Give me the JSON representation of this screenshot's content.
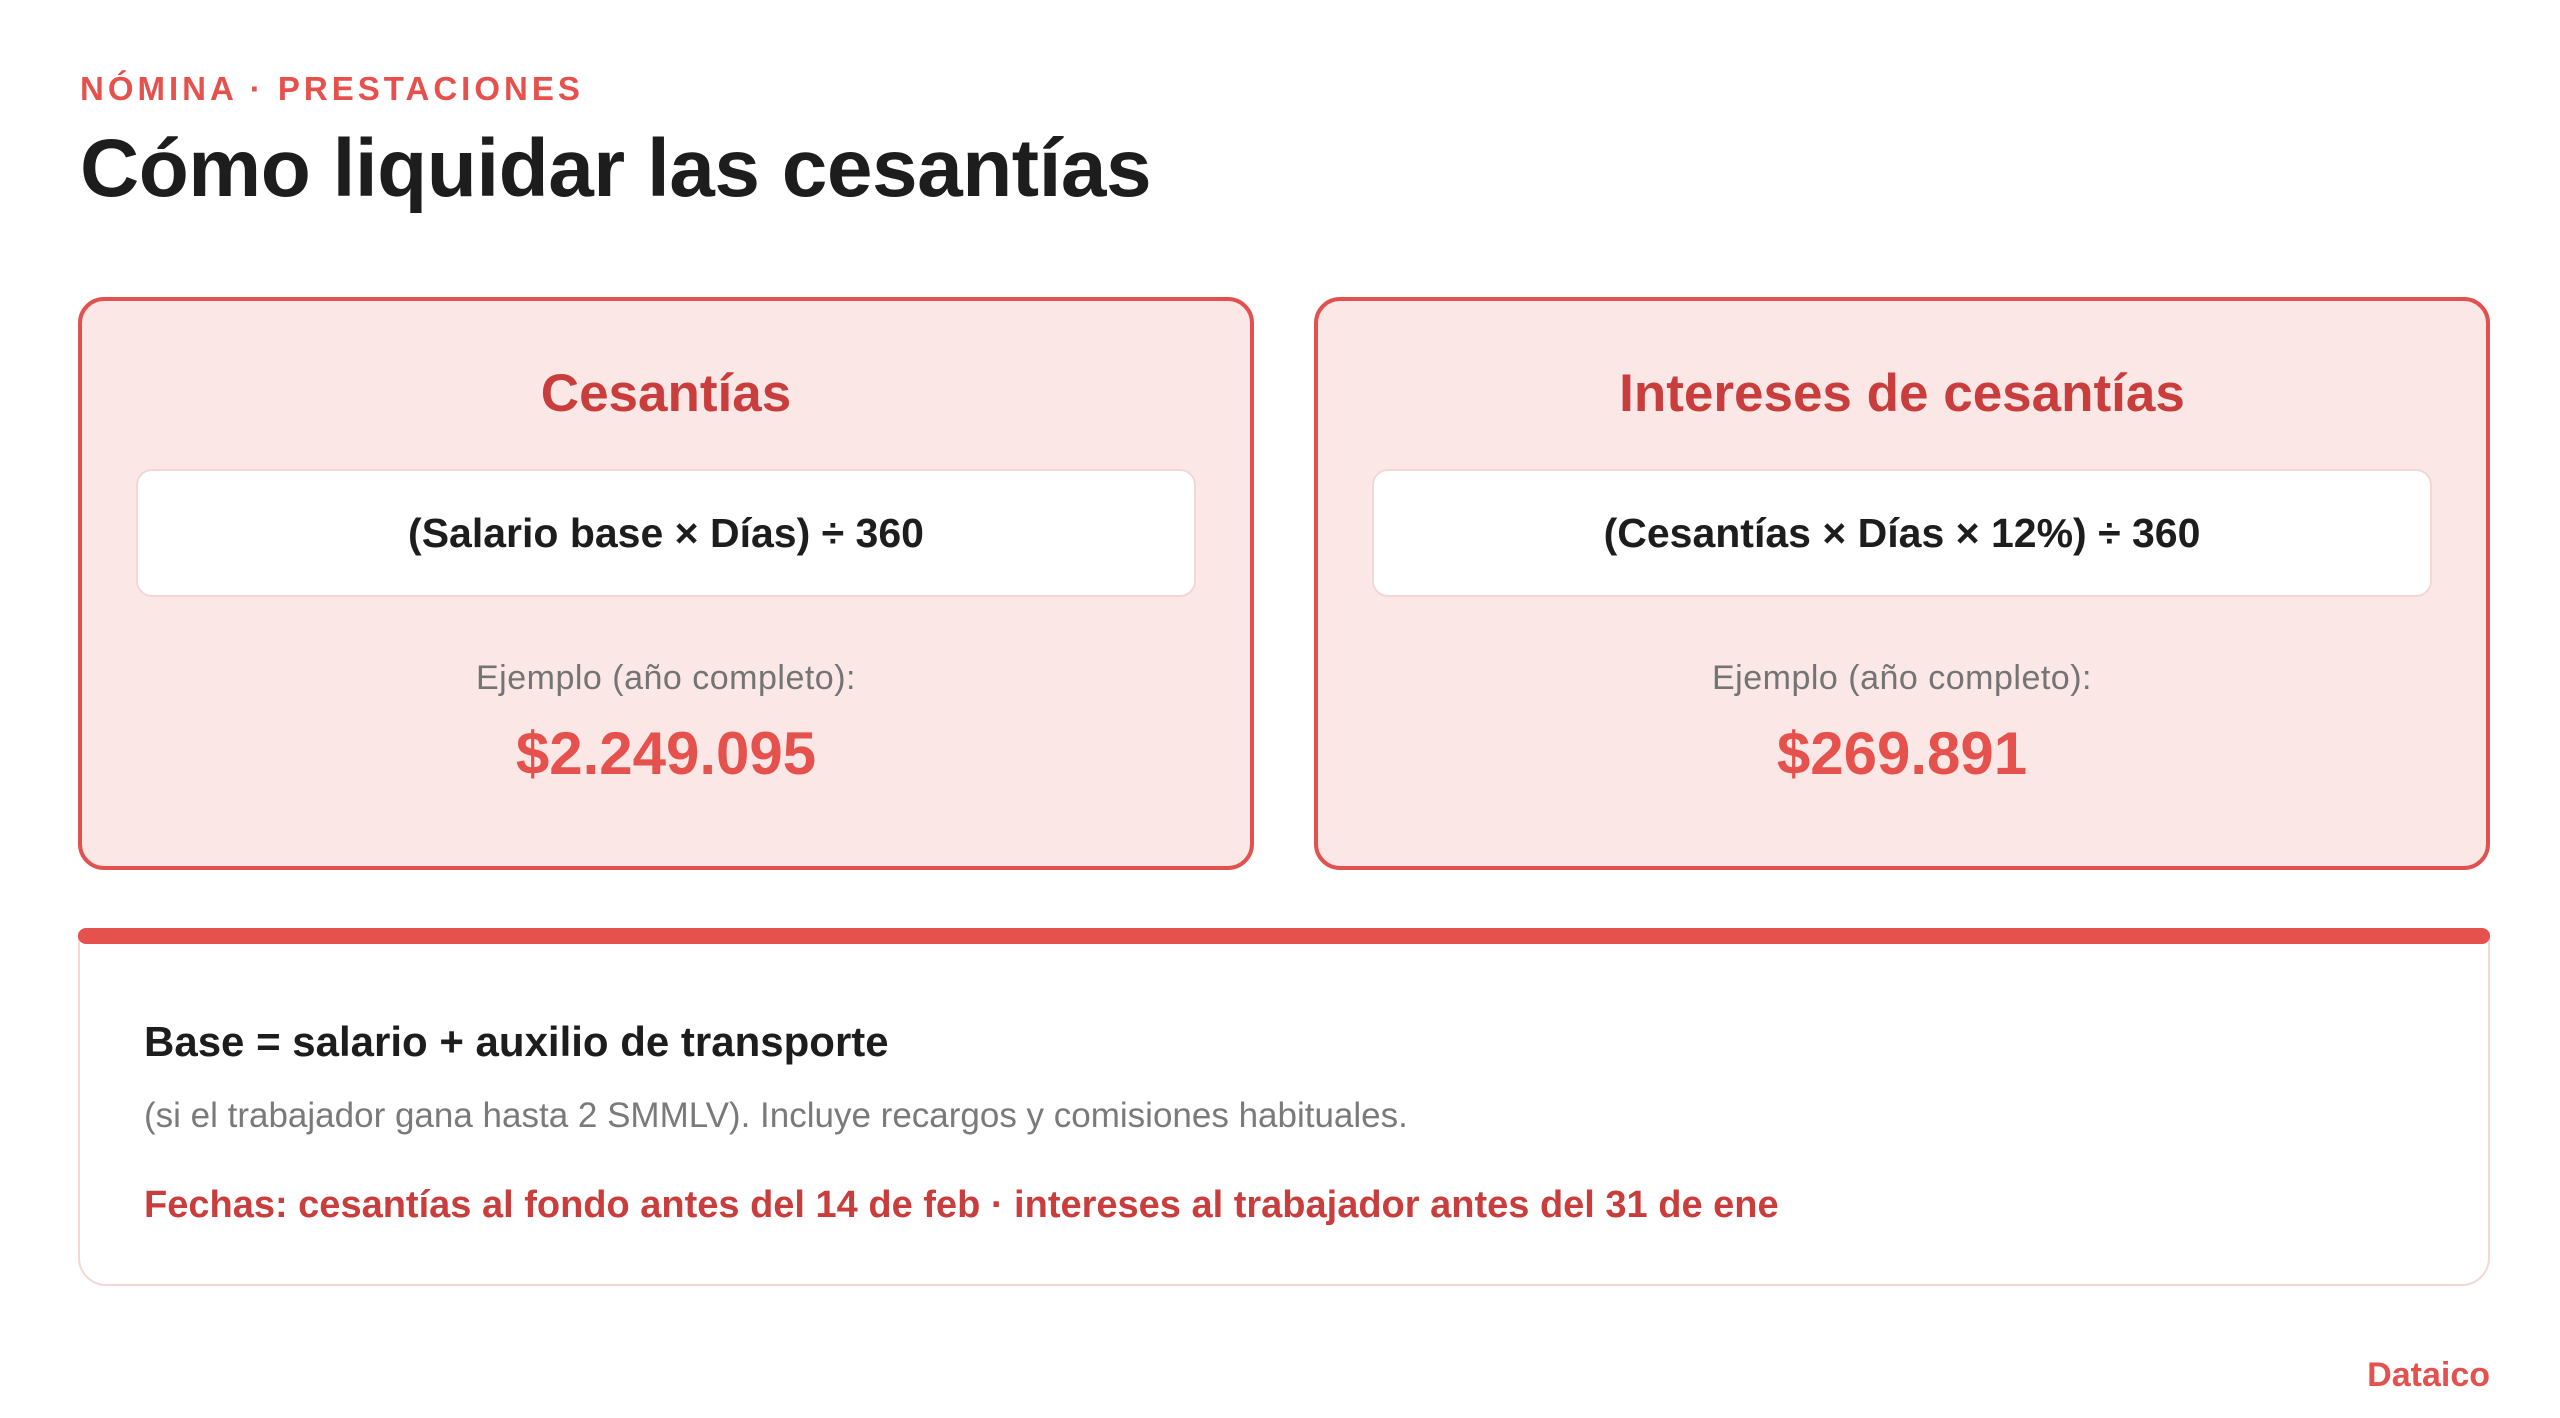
{
  "header": {
    "eyebrow": "NÓMINA · PRESTACIONES",
    "title": "Cómo liquidar las cesantías"
  },
  "cards": [
    {
      "title": "Cesantías",
      "formula": "(Salario base × Días) ÷ 360",
      "example_label": "Ejemplo (año completo):",
      "example_value": "$2.249.095"
    },
    {
      "title": "Intereses de cesantías",
      "formula": "(Cesantías × Días × 12%) ÷ 360",
      "example_label": "Ejemplo (año completo):",
      "example_value": "$269.891"
    }
  ],
  "info": {
    "heading": "Base = salario + auxilio de transporte",
    "note": "(si el trabajador gana hasta 2 SMMLV). Incluye recargos y comisiones habituales.",
    "dates": "Fechas: cesantías al fondo antes del 14 de feb · intereses al trabajador antes del 31 de ene"
  },
  "brand": "Dataico",
  "colors": {
    "accent": "#e5514d",
    "card_bg": "#fae7e6",
    "card_border": "#e0514f",
    "card_title": "#c93e3c",
    "text": "#1d1d1d",
    "muted": "#747474"
  }
}
